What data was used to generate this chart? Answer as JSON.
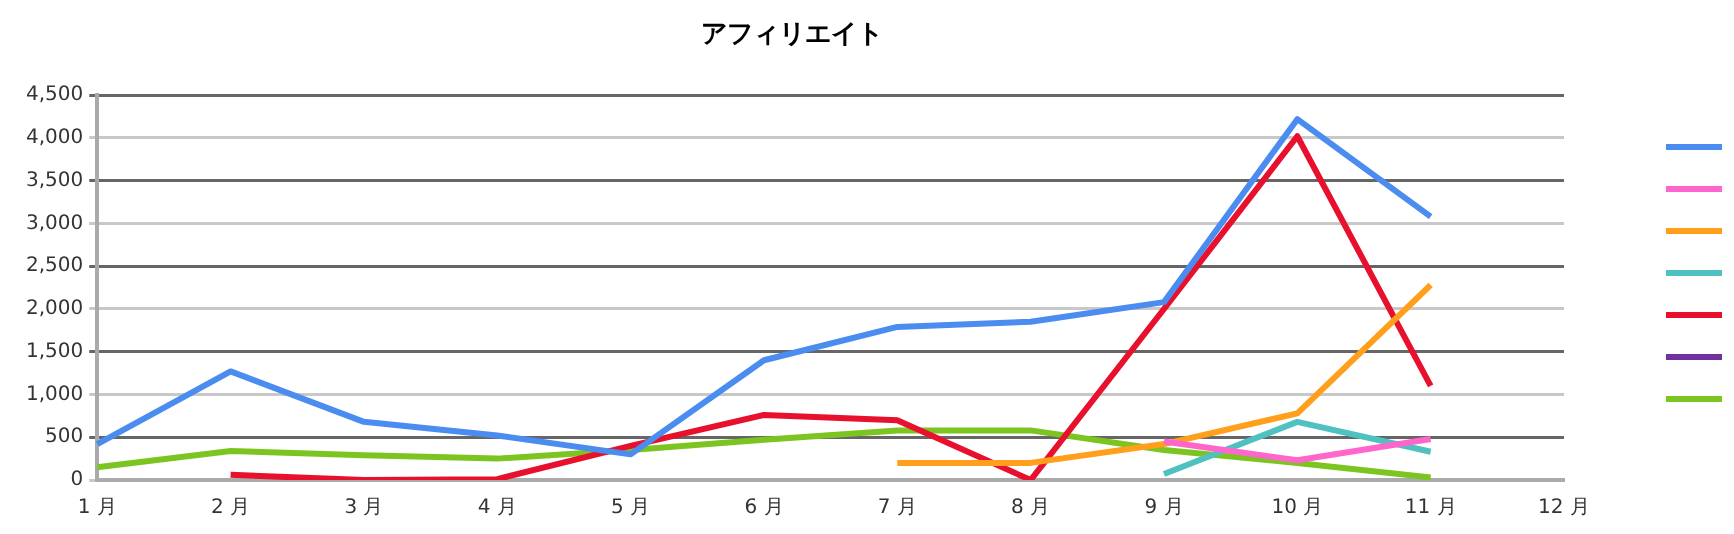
{
  "chart_data": {
    "type": "line",
    "title": "アフィリエイト",
    "categories": [
      "1 月",
      "2 月",
      "3 月",
      "4 月",
      "5 月",
      "6 月",
      "7 月",
      "8 月",
      "9 月",
      "10 月",
      "11 月",
      "12 月"
    ],
    "ylim": [
      0,
      4500
    ],
    "yticks": [
      0,
      {
        "value": 500,
        "label": "500"
      },
      {
        "value": 1000,
        "label": "1,000"
      },
      {
        "value": 1500,
        "label": "1,500"
      },
      {
        "value": 2000,
        "label": "2,000"
      },
      {
        "value": 2500,
        "label": "2,500"
      },
      {
        "value": 3000,
        "label": "3,000"
      },
      {
        "value": 3500,
        "label": "3,500"
      },
      {
        "value": 4000,
        "label": "4,000"
      },
      {
        "value": 4500,
        "label": "4,500"
      }
    ],
    "grid": "y",
    "marker": "none",
    "line_style": "solid",
    "series": [
      {
        "color": "#4a8cf0",
        "values": [
          420,
          1270,
          680,
          520,
          300,
          1400,
          1790,
          1850,
          2080,
          4220,
          3080,
          null
        ]
      },
      {
        "color": "#ff66cc",
        "values": [
          null,
          null,
          null,
          null,
          null,
          null,
          null,
          null,
          450,
          230,
          480,
          null
        ]
      },
      {
        "color": "#ff9f1c",
        "values": [
          null,
          null,
          null,
          null,
          null,
          null,
          200,
          200,
          420,
          780,
          2280,
          null
        ]
      },
      {
        "color": "#4fc1c1",
        "values": [
          null,
          null,
          null,
          null,
          null,
          null,
          null,
          null,
          70,
          680,
          330,
          null
        ]
      },
      {
        "color": "#e8112d",
        "values": [
          null,
          60,
          0,
          10,
          400,
          760,
          700,
          0,
          2000,
          4020,
          1100,
          null
        ]
      },
      {
        "color": "#7030a0",
        "values": [
          null,
          null,
          null,
          null,
          null,
          null,
          null,
          null,
          null,
          null,
          null,
          null
        ]
      },
      {
        "color": "#7cc520",
        "values": [
          150,
          340,
          290,
          250,
          350,
          470,
          580,
          580,
          350,
          200,
          30,
          null
        ]
      }
    ]
  }
}
